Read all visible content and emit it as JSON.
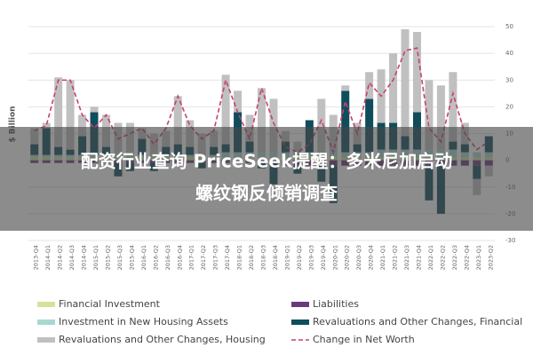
{
  "chart_data": {
    "type": "bar",
    "y_label": "$ Billion",
    "categories": [
      "2013-Q4",
      "2014-Q1",
      "2014-Q2",
      "2014-Q3",
      "2014-Q4",
      "2015-Q1",
      "2015-Q2",
      "2015-Q3",
      "2015-Q4",
      "2016-Q1",
      "2016-Q2",
      "2016-Q3",
      "2016-Q4",
      "2017-Q1",
      "2017-Q2",
      "2017-Q3",
      "2017-Q4",
      "2018-Q1",
      "2018-Q2",
      "2018-Q3",
      "2018-Q4",
      "2019-Q1",
      "2019-Q2",
      "2019-Q3",
      "2019-Q4",
      "2020-Q1",
      "2020-Q2",
      "2020-Q3",
      "2020-Q4",
      "2021-Q1",
      "2021-Q2",
      "2021-Q3",
      "2021-Q4",
      "2022-Q1",
      "2022-Q2",
      "2022-Q3",
      "2022-Q4",
      "2023-Q1",
      "2023-Q2"
    ],
    "series": [
      {
        "name": "Financial Investment",
        "color": "#d4e29a",
        "values": [
          1,
          1,
          1,
          1,
          1,
          1,
          1,
          1,
          1,
          1,
          1,
          1,
          1,
          1,
          1,
          1,
          1,
          1,
          1,
          1,
          1,
          1,
          1,
          1,
          1,
          1,
          1,
          1,
          1,
          1,
          1,
          1,
          1,
          1,
          1,
          1,
          1,
          1,
          1
        ]
      },
      {
        "name": "Liabilities",
        "color": "#6b3a7d",
        "values": [
          -1,
          -1,
          -1,
          -1,
          -1,
          -1,
          -1,
          -1,
          -1,
          -1,
          -1,
          -1,
          -1,
          -1,
          -1,
          -1,
          -1,
          -1,
          -1,
          -1,
          -1,
          -2,
          -2,
          -2,
          -2,
          -2,
          -2,
          -2,
          -2,
          -2,
          -2,
          -2,
          -2,
          -2,
          -2,
          -2,
          -2,
          -2,
          -2
        ]
      },
      {
        "name": "Investment in New Housing Assets",
        "color": "#a8d8d0",
        "values": [
          1,
          1,
          1,
          1,
          1,
          1,
          1,
          1,
          1,
          1,
          1,
          1,
          1,
          1,
          1,
          1,
          2,
          2,
          2,
          2,
          2,
          2,
          2,
          2,
          2,
          2,
          2,
          2,
          2,
          3,
          3,
          3,
          3,
          3,
          3,
          3,
          2,
          2,
          2
        ]
      },
      {
        "name": "Revaluations and Other Changes, Financial",
        "color": "#0f4c5c",
        "values": [
          4,
          10,
          3,
          2,
          7,
          16,
          3,
          -5,
          -3,
          6,
          -3,
          3,
          4,
          3,
          -2,
          3,
          3,
          15,
          4,
          -2,
          -8,
          4,
          -3,
          12,
          -6,
          -14,
          23,
          3,
          20,
          10,
          10,
          5,
          14,
          -13,
          -18,
          3,
          3,
          -5,
          6
        ]
      },
      {
        "name": "Revaluations and Other Changes, Housing",
        "color": "#c0c0c0",
        "values": [
          6,
          2,
          26,
          26,
          8,
          2,
          12,
          12,
          12,
          4,
          8,
          6,
          18,
          10,
          8,
          6,
          26,
          8,
          10,
          24,
          20,
          4,
          4,
          0,
          20,
          14,
          2,
          8,
          10,
          20,
          26,
          40,
          30,
          26,
          24,
          26,
          8,
          -6,
          -4
        ]
      },
      {
        "name": "Change in Net Worth",
        "color": "#c8416e",
        "type": "line",
        "values": [
          11,
          13,
          30,
          30,
          17,
          12,
          17,
          8,
          10,
          12,
          6,
          12,
          24,
          13,
          8,
          11,
          30,
          18,
          8,
          27,
          14,
          5,
          3,
          6,
          15,
          3,
          22,
          10,
          29,
          24,
          30,
          41,
          42,
          12,
          7,
          25,
          10,
          4,
          7
        ]
      }
    ],
    "ylim": [
      -30,
      50
    ],
    "yticks": [
      -30,
      -20,
      -10,
      0,
      10,
      20,
      30,
      40,
      50
    ],
    "grid": true
  },
  "banner": {
    "lines": [
      "配资行业查询 PriceSeek提醒：多米尼加启动",
      "螺纹钢反倾销调查"
    ]
  }
}
